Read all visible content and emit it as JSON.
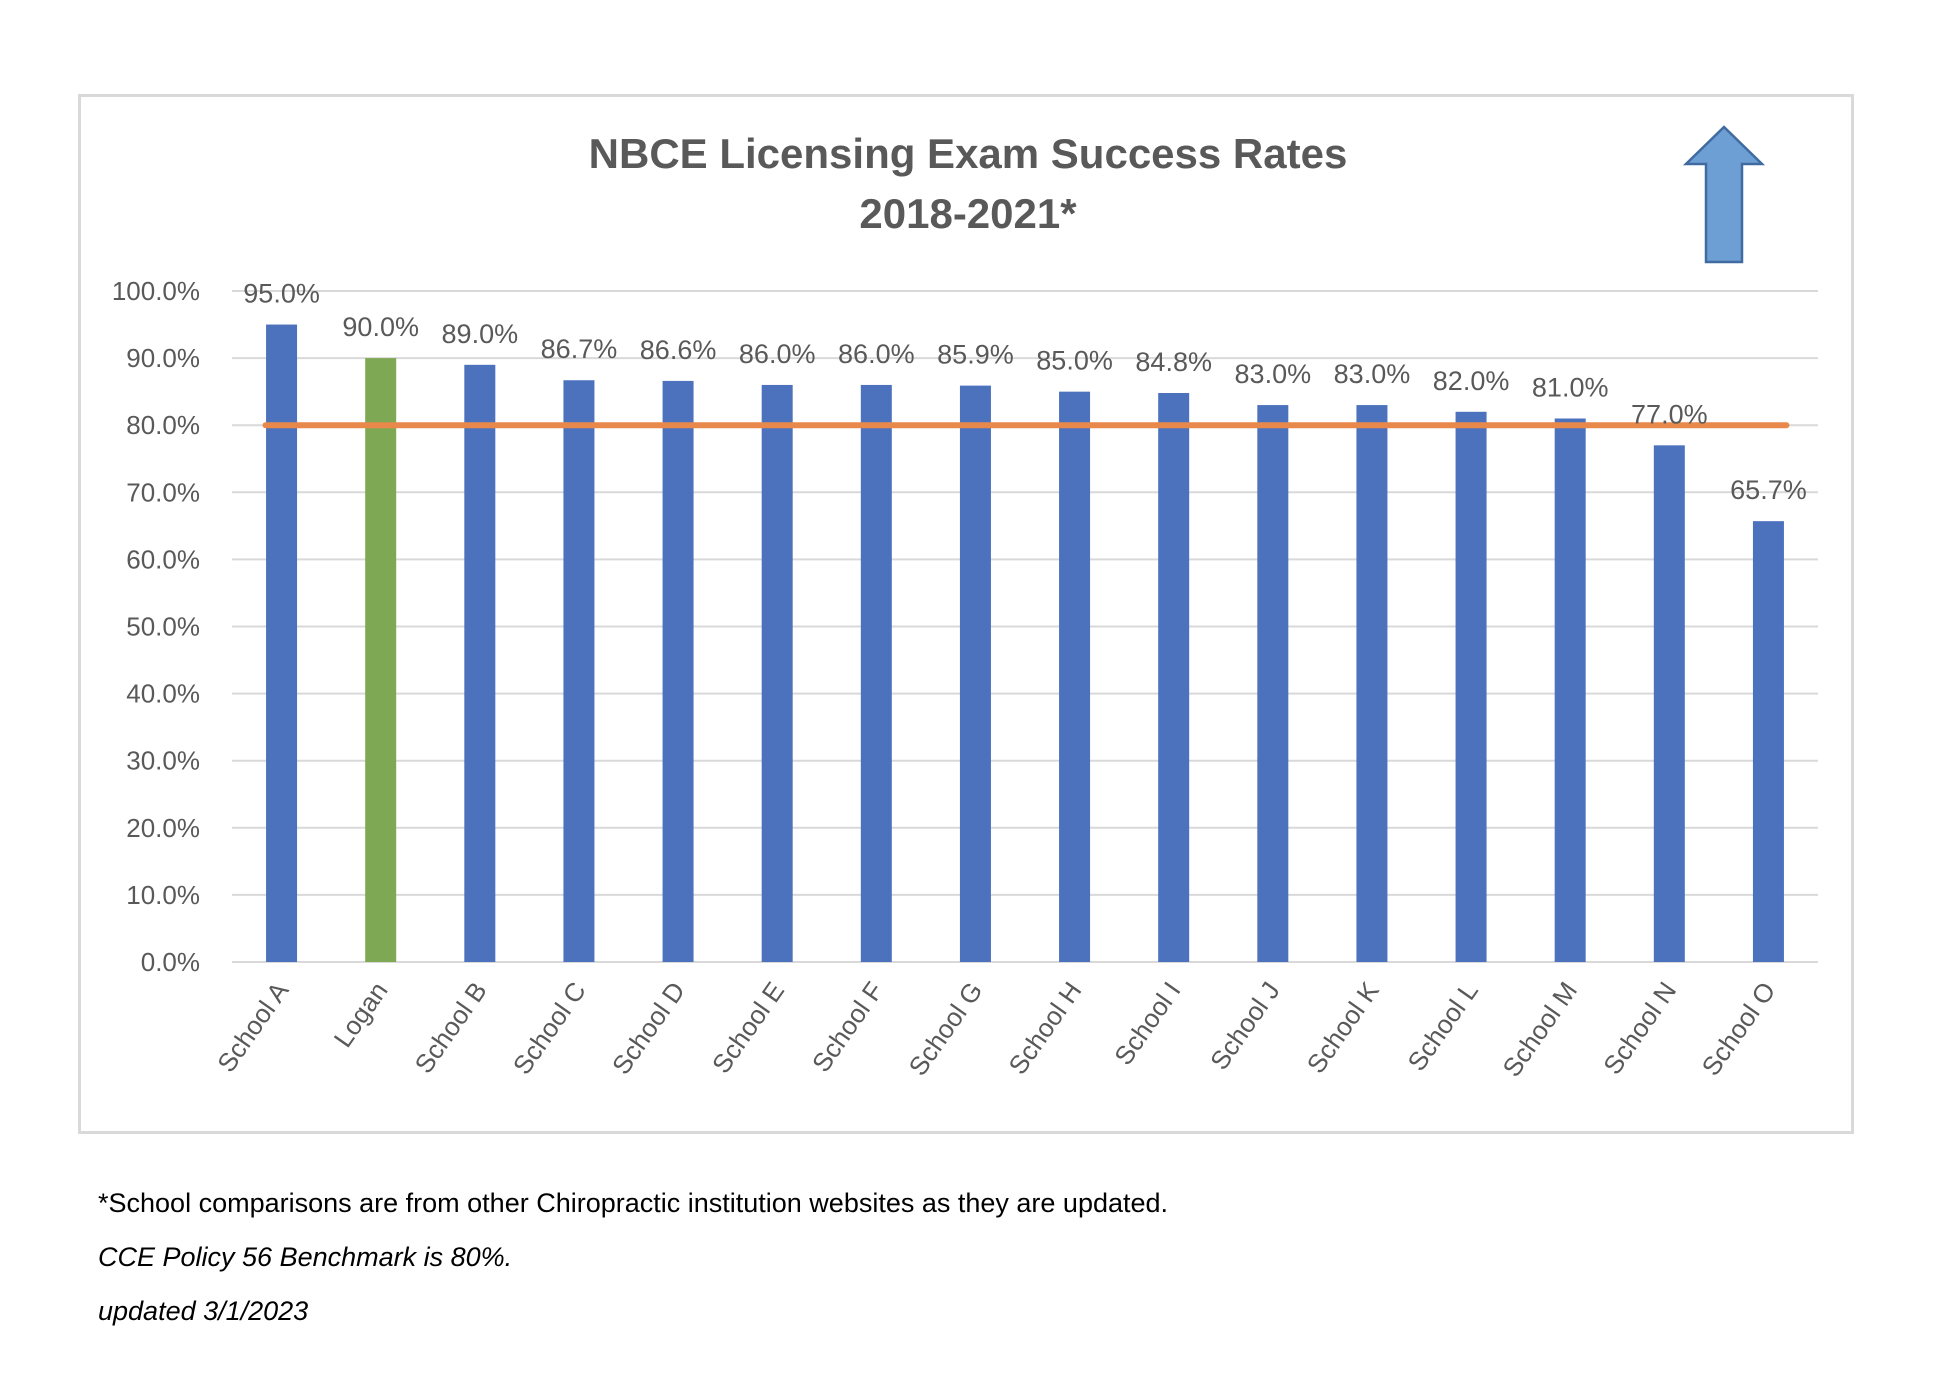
{
  "chart_data": {
    "type": "bar",
    "title": "NBCE Licensing Exam Success Rates",
    "subtitle": "2018-2021*",
    "categories": [
      "School A",
      "Logan",
      "School B",
      "School C",
      "School D",
      "School E",
      "School F",
      "School G",
      "School H",
      "School I",
      "School J",
      "School K",
      "School L",
      "School M",
      "School N",
      "School O"
    ],
    "values": [
      95.0,
      90.0,
      89.0,
      86.7,
      86.6,
      86.0,
      86.0,
      85.9,
      85.0,
      84.8,
      83.0,
      83.0,
      82.0,
      81.0,
      77.0,
      65.7
    ],
    "data_labels": [
      "95.0%",
      "90.0%",
      "89.0%",
      "86.7%",
      "86.6%",
      "86.0%",
      "86.0%",
      "85.9%",
      "85.0%",
      "84.8%",
      "83.0%",
      "83.0%",
      "82.0%",
      "81.0%",
      "77.0%",
      "65.7%"
    ],
    "highlight_category": "Logan",
    "ylim": [
      0,
      100
    ],
    "yticks": [
      "0.0%",
      "10.0%",
      "20.0%",
      "30.0%",
      "40.0%",
      "50.0%",
      "60.0%",
      "70.0%",
      "80.0%",
      "90.0%",
      "100.0%"
    ],
    "ytick_values": [
      0,
      10,
      20,
      30,
      40,
      50,
      60,
      70,
      80,
      90,
      100
    ],
    "benchmark": 80,
    "grid": true,
    "xlabel": "",
    "ylabel": "",
    "colors": {
      "bar": "#4c72be",
      "highlight": "#7fa854",
      "benchmark": "#e8894b",
      "grid": "#d9d9d9",
      "tick_text": "#595959",
      "arrow_fill": "#6e9fd4",
      "arrow_stroke": "#3f6ba0"
    },
    "arrow_icon": "up-arrow-icon"
  },
  "footnotes": {
    "note1": "*School comparisons are from other Chiropractic institution websites as they are updated.",
    "note2": "CCE Policy 56 Benchmark is 80%.",
    "note3": "updated 3/1/2023"
  }
}
